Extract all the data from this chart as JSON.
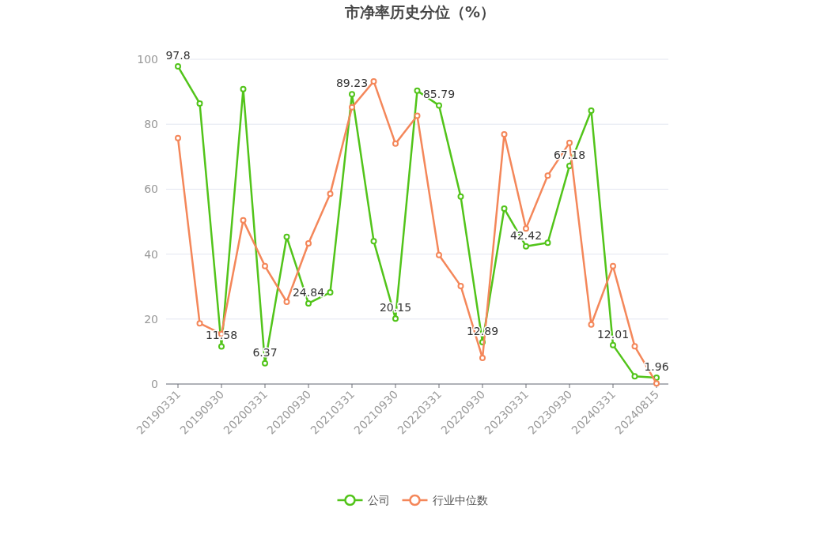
{
  "chart_data": {
    "type": "line",
    "title": "市净率历史分位（%）",
    "categories": [
      "20190331",
      null,
      "20190930",
      null,
      "20200331",
      null,
      "20200930",
      null,
      "20210331",
      null,
      "20210930",
      null,
      "20220331",
      null,
      "20220930",
      null,
      "20230331",
      null,
      "20230930",
      null,
      "20240331",
      null,
      "20240815"
    ],
    "series": [
      {
        "name": "公司",
        "color": "#52c41a",
        "values": [
          97.8,
          86.4,
          11.58,
          90.8,
          6.37,
          45.3,
          24.84,
          28.2,
          89.23,
          44.0,
          20.15,
          90.3,
          85.79,
          57.7,
          12.89,
          54.0,
          42.42,
          43.5,
          67.18,
          84.2,
          12.01,
          2.4,
          1.96
        ],
        "value_labels": [
          "97.8",
          null,
          "11.58",
          null,
          "6.37",
          null,
          "24.84",
          null,
          "89.23",
          null,
          "20.15",
          null,
          "85.79",
          null,
          "12.89",
          null,
          "42.42",
          null,
          "67.18",
          null,
          "12.01",
          null,
          "1.96"
        ]
      },
      {
        "name": "行业中位数",
        "color": "#f4875a",
        "values": [
          75.7,
          18.7,
          15.4,
          50.4,
          36.3,
          25.3,
          43.3,
          58.6,
          85.2,
          93.2,
          74.0,
          82.6,
          39.7,
          30.2,
          8.0,
          76.9,
          47.9,
          64.2,
          74.3,
          18.3,
          36.3,
          11.6,
          0.2
        ]
      }
    ],
    "ylim": [
      0,
      100
    ],
    "yticks": [
      0,
      20,
      40,
      60,
      80,
      100
    ],
    "grid": "y",
    "legend": "bottom",
    "marker": "circle",
    "line_style": "solid"
  }
}
